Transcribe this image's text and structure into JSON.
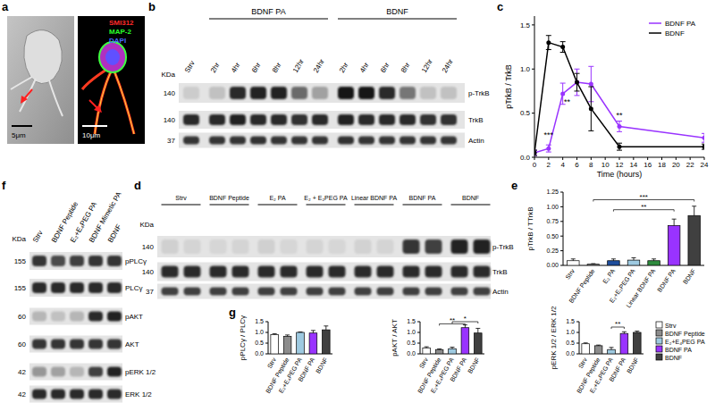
{
  "panel_labels": [
    "a",
    "b",
    "c",
    "d",
    "e",
    "f",
    "g"
  ],
  "micrographs": {
    "scale_bars": [
      "5μm",
      "10μm"
    ],
    "stains": [
      {
        "text": "SMI312",
        "color": "#ff2a2a"
      },
      {
        "text": "MAP-2",
        "color": "#2aff2a"
      },
      {
        "text": "DAPI",
        "color": "#4a6bff"
      }
    ]
  },
  "blot_b": {
    "kda_label": "KDa",
    "lanes": [
      "Strv"
    ],
    "groups": [
      {
        "label": "BDNF PA",
        "lanes": [
          "2hr",
          "4hr",
          "6hr",
          "8hr",
          "12hr",
          "24hr"
        ]
      },
      {
        "label": "BDNF",
        "lanes": [
          "2hr",
          "4hr",
          "6hr",
          "8hr",
          "12hr",
          "24hr"
        ]
      }
    ],
    "rows": [
      {
        "label": "p-TrkB",
        "kda": 140,
        "bands": [
          0.1,
          0.15,
          0.85,
          0.9,
          0.88,
          0.55,
          0.3,
          0.95,
          0.95,
          0.85,
          0.5,
          0.15,
          0.15
        ]
      },
      {
        "label": "TrkB",
        "kda": 140,
        "bands": [
          0.85,
          0.85,
          0.88,
          0.85,
          0.85,
          0.82,
          0.85,
          0.88,
          0.85,
          0.85,
          0.85,
          0.82,
          0.82
        ]
      },
      {
        "label": "Actin",
        "kda": 37,
        "bands": [
          0.8,
          0.8,
          0.8,
          0.82,
          0.8,
          0.8,
          0.8,
          0.82,
          0.8,
          0.8,
          0.8,
          0.8,
          0.8
        ]
      }
    ]
  },
  "blot_d": {
    "kda_label": "KDa",
    "groups": [
      {
        "label": "Strv"
      },
      {
        "label": "BDNF Peptide"
      },
      {
        "label": "E₂ PA"
      },
      {
        "label": "E₂ + E₂PEG PA"
      },
      {
        "label": "Linear BDNF PA"
      },
      {
        "label": "BDNF PA"
      },
      {
        "label": "BDNF"
      }
    ],
    "rows": [
      {
        "label": "p-TrkB",
        "kda": 140,
        "bands": [
          0.08,
          0.06,
          0.05,
          0.06,
          0.08,
          0.05,
          0.06,
          0.05,
          0.07,
          0.06,
          0.8,
          0.75,
          0.9,
          0.9
        ]
      },
      {
        "label": "TrkB",
        "kda": 140,
        "bands": [
          0.85,
          0.85,
          0.85,
          0.85,
          0.85,
          0.85,
          0.85,
          0.85,
          0.85,
          0.85,
          0.85,
          0.85,
          0.85,
          0.85
        ]
      },
      {
        "label": "Actin",
        "kda": 37,
        "bands": [
          0.75,
          0.75,
          0.75,
          0.75,
          0.75,
          0.75,
          0.75,
          0.75,
          0.75,
          0.75,
          0.75,
          0.75,
          0.75,
          0.75
        ]
      }
    ]
  },
  "blot_f": {
    "kda_label": "KDa",
    "lanes": [
      "Strv",
      "BDNF Peptide",
      "E₂+E₄PEG PA",
      "BDNF Mimetic PA",
      "BDNF"
    ],
    "rows": [
      {
        "label": "pPLCγ",
        "kda": 155,
        "bands": [
          0.8,
          0.7,
          0.75,
          0.8,
          0.8
        ]
      },
      {
        "label": "PLCγ",
        "kda": 155,
        "bands": [
          0.85,
          0.85,
          0.85,
          0.85,
          0.85
        ]
      },
      {
        "label": "pAKT",
        "kda": 60,
        "bands": [
          0.2,
          0.15,
          0.2,
          0.85,
          0.9
        ]
      },
      {
        "label": "AKT",
        "kda": 60,
        "bands": [
          0.8,
          0.8,
          0.8,
          0.8,
          0.8
        ]
      },
      {
        "label": "pERK 1/2",
        "kda": 42,
        "bands": [
          0.35,
          0.3,
          0.2,
          0.75,
          0.9
        ]
      },
      {
        "label": "ERK 1/2",
        "kda": 42,
        "bands": [
          0.85,
          0.85,
          0.85,
          0.85,
          0.85
        ]
      }
    ]
  },
  "chart_data": [
    {
      "type": "line",
      "xlabel": "Time (hours)",
      "ylabel": "pTrkB / TrkB",
      "x": [
        0,
        2,
        4,
        6,
        8,
        12,
        24
      ],
      "xlim": [
        0,
        24
      ],
      "xticks": [
        0,
        2,
        4,
        6,
        8,
        10,
        12,
        14,
        16,
        18,
        20,
        22,
        24
      ],
      "ylim": [
        0,
        1.6
      ],
      "yticks": [
        {
          "value": 0,
          "label": "0.0"
        },
        {
          "value": 0.5,
          "label": "0.5"
        },
        {
          "value": 1,
          "label": "1.0"
        },
        {
          "value": 1.5,
          "label": "1.5"
        }
      ],
      "legend": "upper right",
      "marker": "circle",
      "series": [
        {
          "name": "BDNF PA",
          "color": "#9933ff",
          "values": [
            0.05,
            0.1,
            0.72,
            0.85,
            0.83,
            0.35,
            0.22
          ],
          "errors": [
            0.03,
            0.04,
            0.12,
            0.15,
            0.2,
            0.06,
            0.05
          ]
        },
        {
          "name": "BDNF",
          "color": "#000000",
          "values": [
            0.05,
            1.3,
            1.25,
            0.85,
            0.55,
            0.12,
            0.12
          ],
          "errors": [
            0.03,
            0.08,
            0.06,
            0.1,
            0.25,
            0.04,
            0.03
          ]
        }
      ],
      "annotations": [
        {
          "text": "***",
          "x": 2,
          "y": 0.22
        },
        {
          "text": "**",
          "x": 4.6,
          "y": 0.6
        },
        {
          "text": "**",
          "x": 12,
          "y": 0.45
        }
      ]
    },
    {
      "type": "bar",
      "ylabel": "pTrkB / TTrkB",
      "categories": [
        "Strv",
        "BDNF Peptide",
        "E₂ PA",
        "E₂+E₂PEG PA",
        "Linear BDNF PA",
        "BDNF PA",
        "BDNF"
      ],
      "values": [
        0.08,
        0.02,
        0.08,
        0.09,
        0.08,
        0.68,
        0.85
      ],
      "errors": [
        0.03,
        0.01,
        0.03,
        0.04,
        0.03,
        0.11,
        0.16
      ],
      "colors": [
        "#ffffff",
        "#8c8c8c",
        "#1f4e9c",
        "#9ecae1",
        "#2e8b3e",
        "#9933ff",
        "#404040"
      ],
      "ylim": [
        0,
        1.25
      ],
      "yticks": [
        {
          "value": 0,
          "label": "0.00"
        },
        {
          "value": 0.25,
          "label": "0.25"
        },
        {
          "value": 0.5,
          "label": "0.50"
        },
        {
          "value": 0.75,
          "label": "0.75"
        },
        {
          "value": 1,
          "label": "1.00"
        },
        {
          "value": 1.25,
          "label": "1.25"
        }
      ],
      "annotations": [
        {
          "text": "***",
          "from": "BDNF Peptide",
          "to": "BDNF",
          "y": 1.12
        },
        {
          "text": "**",
          "from": "E₂ PA",
          "to": "BDNF PA",
          "y": 0.95
        }
      ]
    },
    {
      "type": "bar",
      "ylabel": "pPLCγ / PLCγ",
      "categories": [
        "Strv",
        "BDNF Peptide",
        "E₂+E₄PEG PA",
        "BDNF PA",
        "BDNF"
      ],
      "values": [
        0.9,
        0.82,
        1.0,
        0.97,
        1.12
      ],
      "errors": [
        0.04,
        0.06,
        0.02,
        0.12,
        0.18
      ],
      "colors": [
        "#ffffff",
        "#8c8c8c",
        "#9ecae1",
        "#9933ff",
        "#404040"
      ],
      "ylim": [
        0,
        1.5
      ],
      "yticks": [
        {
          "value": 0,
          "label": "0.0"
        },
        {
          "value": 0.5,
          "label": "0.5"
        },
        {
          "value": 1,
          "label": "1.0"
        },
        {
          "value": 1.5,
          "label": "1.5"
        }
      ]
    },
    {
      "type": "bar",
      "ylabel": "pAKT / AKT",
      "categories": [
        "Strv",
        "BDNF Peptide",
        "E₂+E₄PEG PA",
        "BDNF PA",
        "BDNF"
      ],
      "values": [
        0.28,
        0.2,
        0.24,
        1.22,
        0.97
      ],
      "errors": [
        0.05,
        0.03,
        0.07,
        0.13,
        0.22
      ],
      "colors": [
        "#ffffff",
        "#8c8c8c",
        "#9ecae1",
        "#9933ff",
        "#404040"
      ],
      "ylim": [
        0,
        1.5
      ],
      "yticks": [
        {
          "value": 0,
          "label": "0.0"
        },
        {
          "value": 0.5,
          "label": "0.5"
        },
        {
          "value": 1,
          "label": "1.0"
        },
        {
          "value": 1.5,
          "label": "1.5"
        }
      ],
      "annotations": [
        {
          "text": "*",
          "from": "E₂+E₄PEG PA",
          "to": "BDNF",
          "y": 1.5
        },
        {
          "text": "**",
          "from": "BDNF Peptide",
          "to": "BDNF PA",
          "y": 1.4
        }
      ]
    },
    {
      "type": "bar",
      "ylabel": "pERK 1/2 / ERK 1/2",
      "categories": [
        "Strv",
        "BDNF Peptide",
        "E₂+E₄PEG PA",
        "BDNF PA",
        "BDNF"
      ],
      "values": [
        0.47,
        0.38,
        0.2,
        0.95,
        1.0
      ],
      "errors": [
        0.04,
        0.03,
        0.1,
        0.08,
        0.06
      ],
      "colors": [
        "#ffffff",
        "#8c8c8c",
        "#9ecae1",
        "#9933ff",
        "#404040"
      ],
      "ylim": [
        0,
        1.5
      ],
      "yticks": [
        {
          "value": 0,
          "label": "0.0"
        },
        {
          "value": 0.5,
          "label": "0.5"
        },
        {
          "value": 1,
          "label": "1.0"
        },
        {
          "value": 1.5,
          "label": "1.5"
        }
      ],
      "legend": "right",
      "annotations": [
        {
          "text": "**",
          "from": "E₂+E₄PEG PA",
          "to": "BDNF PA",
          "y": 1.25
        }
      ]
    }
  ]
}
